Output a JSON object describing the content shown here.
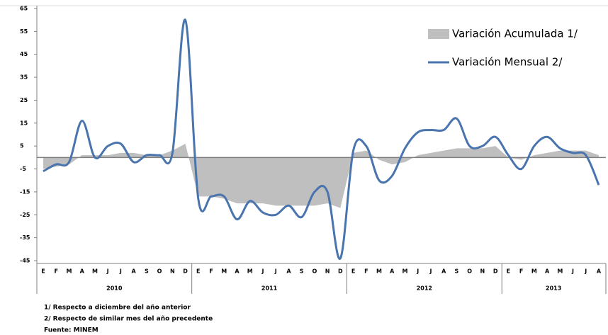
{
  "chart_data": {
    "type": "line",
    "categories": [
      "E",
      "F",
      "M",
      "A",
      "M",
      "J",
      "J",
      "A",
      "S",
      "O",
      "N",
      "D",
      "E",
      "F",
      "M",
      "A",
      "M",
      "J",
      "J",
      "A",
      "S",
      "O",
      "N",
      "D",
      "E",
      "F",
      "M",
      "A",
      "M",
      "J",
      "J",
      "A",
      "S",
      "O",
      "N",
      "D",
      "E",
      "F",
      "M",
      "A",
      "M",
      "J",
      "J",
      "A"
    ],
    "years": [
      "2010",
      "2011",
      "2012",
      "2013"
    ],
    "series": [
      {
        "name": "Variación Acumulada 1/",
        "color": "#bfbfbf",
        "kind": "area",
        "values": [
          -5,
          -4,
          -3,
          1,
          1,
          1,
          2,
          2,
          1,
          1,
          3,
          6,
          -17,
          -17,
          -18,
          -20,
          -20,
          -20,
          -21,
          -21,
          -21,
          -21,
          -20,
          -22,
          2,
          3,
          -1,
          -3,
          -2,
          1,
          2,
          3,
          4,
          4,
          4,
          5,
          0,
          -1,
          1,
          2,
          3,
          3,
          3,
          1
        ]
      },
      {
        "name": "Variación Mensual 2/",
        "color": "#4a74ad",
        "kind": "line",
        "values": [
          -6,
          -3,
          -2,
          16,
          0,
          5,
          6,
          -2,
          1,
          1,
          2,
          60,
          -18,
          -17,
          -17,
          -27,
          -19,
          -24,
          -25,
          -21,
          -26,
          -15,
          -15,
          -44,
          3,
          5,
          -10,
          -8,
          4,
          11,
          12,
          12,
          17,
          5,
          5,
          9,
          1,
          -5,
          5,
          9,
          4,
          2,
          1,
          -12
        ]
      }
    ],
    "ylim": [
      -45,
      65
    ],
    "yticks": [
      65,
      55,
      45,
      35,
      25,
      15,
      5,
      -5,
      -15,
      -25,
      -35,
      -45
    ],
    "notes": [
      "1/ Respecto a diciembre del año anterior",
      "2/ Respecto de similar mes del año precedente",
      "Fuente: MINEM"
    ]
  }
}
